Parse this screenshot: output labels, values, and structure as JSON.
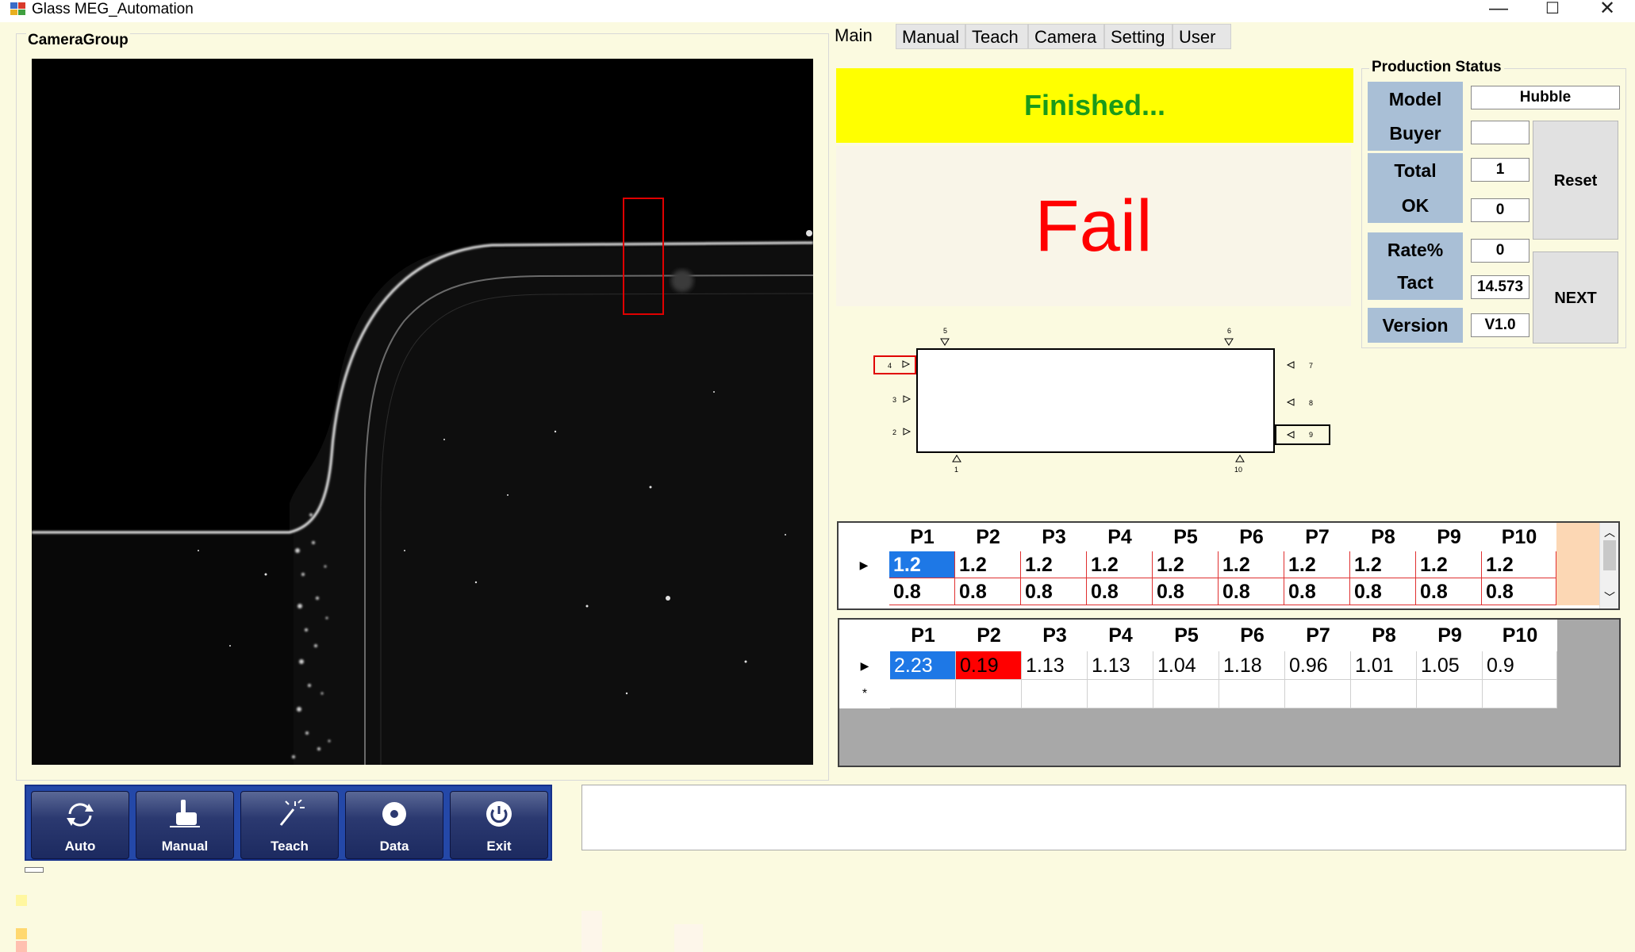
{
  "window": {
    "title": "Glass MEG_Automation",
    "minimize": "—",
    "maximize": "☐",
    "close": "✕"
  },
  "camera_group": {
    "label": "CameraGroup"
  },
  "tabs": [
    {
      "label": "Main"
    },
    {
      "label": "Manual"
    },
    {
      "label": "Teach"
    },
    {
      "label": "Camera"
    },
    {
      "label": "Setting"
    },
    {
      "label": "User"
    }
  ],
  "status": {
    "message": "Finished...",
    "result": "Fail"
  },
  "production_status": {
    "title": "Production Status",
    "model_label": "Model",
    "model_value": "Hubble",
    "buyer_label": "Buyer",
    "buyer_value": "",
    "total_label": "Total",
    "total_value": "1",
    "ok_label": "OK",
    "ok_value": "0",
    "rate_label": "Rate%",
    "rate_value": "0",
    "tact_label": "Tact",
    "tact_value": "14.573",
    "version_label": "Version",
    "version_value": "V1.0",
    "reset_label": "Reset",
    "next_label": "NEXT"
  },
  "schematic": {
    "points": [
      "1",
      "2",
      "3",
      "4",
      "5",
      "6",
      "7",
      "8",
      "9",
      "10"
    ],
    "highlighted": [
      "4",
      "9"
    ]
  },
  "spec_grid": {
    "headers": [
      "P1",
      "P2",
      "P3",
      "P4",
      "P5",
      "P6",
      "P7",
      "P8",
      "P9",
      "P10"
    ],
    "rows": [
      [
        "1.2",
        "1.2",
        "1.2",
        "1.2",
        "1.2",
        "1.2",
        "1.2",
        "1.2",
        "1.2",
        "1.2"
      ],
      [
        "0.8",
        "0.8",
        "0.8",
        "0.8",
        "0.8",
        "0.8",
        "0.8",
        "0.8",
        "0.8",
        "0.8"
      ]
    ]
  },
  "measure_grid": {
    "headers": [
      "P1",
      "P2",
      "P3",
      "P4",
      "P5",
      "P6",
      "P7",
      "P8",
      "P9",
      "P10"
    ],
    "rows": [
      [
        "2.23",
        "0.19",
        "1.13",
        "1.13",
        "1.04",
        "1.18",
        "0.96",
        "1.01",
        "1.05",
        "0.9"
      ]
    ],
    "new_row_marker": "*",
    "fail_color": "#ff0000",
    "select_color": "#1e78e6"
  },
  "toolbar": {
    "auto": "Auto",
    "manual": "Manual",
    "teach": "Teach",
    "data": "Data",
    "exit": "Exit"
  },
  "colors": {
    "background": "#fbfae0",
    "banner_yellow": "#ffff00",
    "fail_red": "#ff0000",
    "label_blue": "#a9bfd6",
    "toolbar_blue": "#2448a8"
  }
}
